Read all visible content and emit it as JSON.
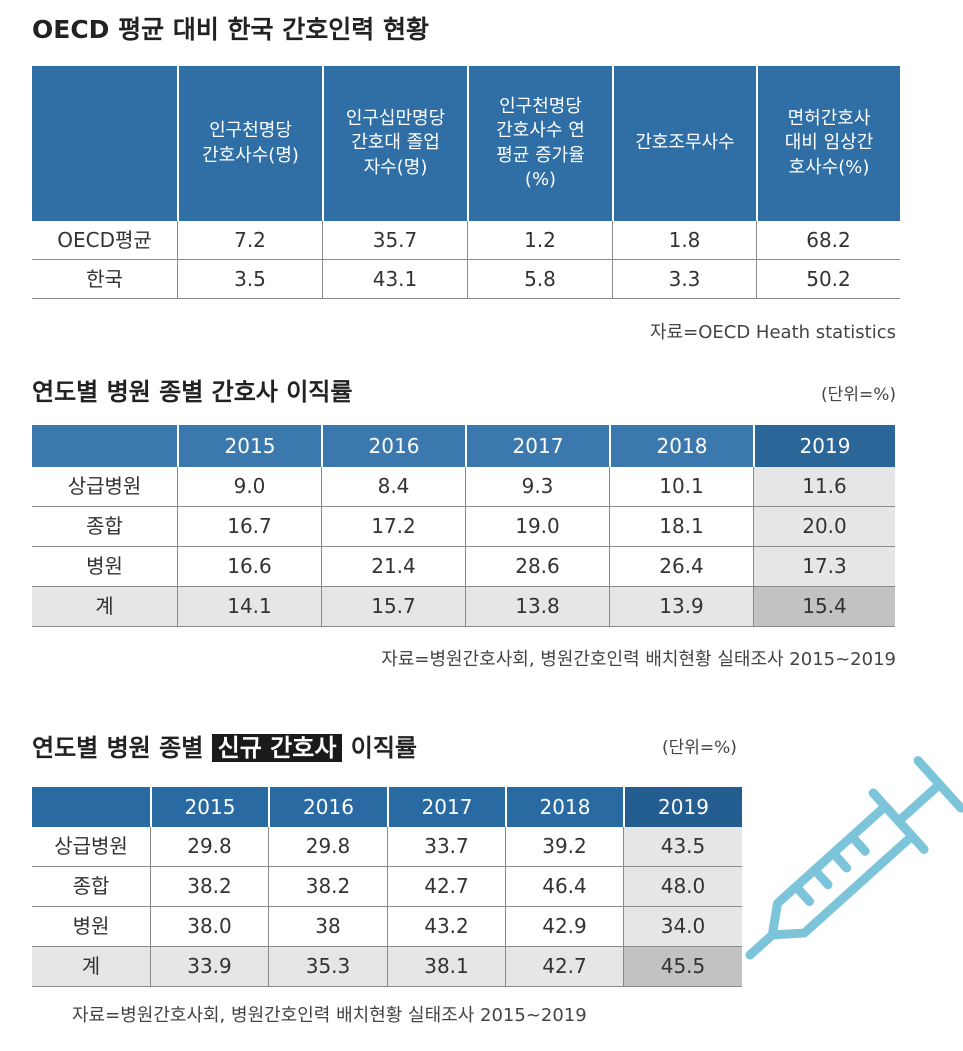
{
  "table1": {
    "title": "OECD 평균 대비 한국 간호인력 현황",
    "header": [
      [
        "인구천명당",
        "간호사수(명)"
      ],
      [
        "인구십만명당",
        "간호대 졸업",
        "자수(명)"
      ],
      [
        "인구천명당",
        "간호사수 연",
        "평균 증가율",
        "(%)"
      ],
      [
        "간호조무사수"
      ],
      [
        "면허간호사",
        "대비 임상간",
        "호사수(%)"
      ]
    ],
    "rows": [
      [
        "OECD평균",
        "7.2",
        "35.7",
        "1.2",
        "1.8",
        "68.2"
      ],
      [
        "한국",
        "3.5",
        "43.1",
        "5.8",
        "3.3",
        "50.2"
      ]
    ],
    "source": "자료=OECD Heath statistics"
  },
  "table2": {
    "title": "연도별 병원 종별 간호사 이직률",
    "unit": "(단위=%)",
    "header": [
      [
        "2015"
      ],
      [
        "2016"
      ],
      [
        "2017"
      ],
      [
        "2018"
      ],
      [
        "2019"
      ]
    ],
    "rows": [
      [
        "상급병원",
        "9.0",
        "8.4",
        "9.3",
        "10.1",
        "11.6"
      ],
      [
        "종합",
        "16.7",
        "17.2",
        "19.0",
        "18.1",
        "20.0"
      ],
      [
        "병원",
        "16.6",
        "21.4",
        "28.6",
        "26.4",
        "17.3"
      ],
      [
        "계",
        "14.1",
        "15.7",
        "13.8",
        "13.9",
        "15.4"
      ]
    ],
    "source": "자료=병원간호사회, 병원간호인력 배치현황 실태조사 2015~2019"
  },
  "table3": {
    "title_before": "연도별 병원 종별",
    "title_highlight": "신규 간호사",
    "title_after": "이직률",
    "unit": "(단위=%)",
    "header": [
      [
        "2015"
      ],
      [
        "2016"
      ],
      [
        "2017"
      ],
      [
        "2018"
      ],
      [
        "2019"
      ]
    ],
    "rows": [
      [
        "상급병원",
        "29.8",
        "29.8",
        "33.7",
        "39.2",
        "43.5"
      ],
      [
        "종합",
        "38.2",
        "38.2",
        "42.7",
        "46.4",
        "48.0"
      ],
      [
        "병원",
        "38.0",
        "38",
        "43.2",
        "42.9",
        "34.0"
      ],
      [
        "계",
        "33.9",
        "35.3",
        "38.1",
        "42.7",
        "45.5"
      ]
    ],
    "source": "자료=병원간호사회, 병원간호인력 배치현황 실태조사 2015~2019"
  }
}
